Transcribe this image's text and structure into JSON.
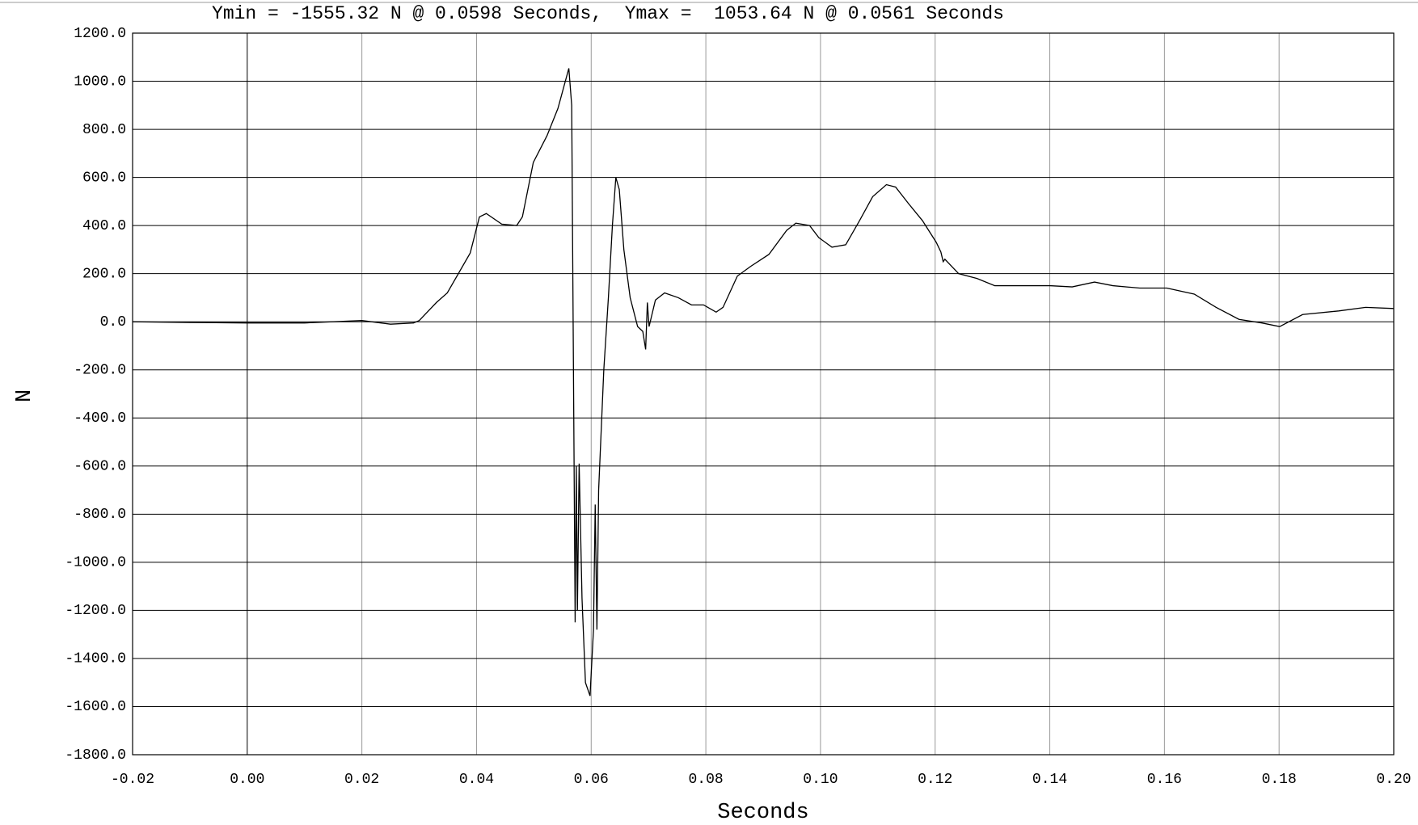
{
  "chart_data": {
    "type": "line",
    "title": "Ymin = -1555.32 N @ 0.0598 Seconds,  Ymax =  1053.64 N @ 0.0561 Seconds",
    "x_label": "Seconds",
    "y_label": "N",
    "xlim": [
      -0.02,
      0.2
    ],
    "ylim": [
      -1800,
      1200
    ],
    "xticks": [
      {
        "value": -0.02,
        "label": "-0.02"
      },
      {
        "value": 0,
        "label": "0.00"
      },
      {
        "value": 0.02,
        "label": "0.02"
      },
      {
        "value": 0.04,
        "label": "0.04"
      },
      {
        "value": 0.06,
        "label": "0.06"
      },
      {
        "value": 0.08,
        "label": "0.08"
      },
      {
        "value": 0.1,
        "label": "0.10"
      },
      {
        "value": 0.12,
        "label": "0.12"
      },
      {
        "value": 0.14,
        "label": "0.14"
      },
      {
        "value": 0.16,
        "label": "0.16"
      },
      {
        "value": 0.18,
        "label": "0.18"
      },
      {
        "value": 0.2,
        "label": "0.20"
      }
    ],
    "yticks": [
      {
        "value": 1200,
        "label": "1200.0"
      },
      {
        "value": 1000,
        "label": "1000.0"
      },
      {
        "value": 800,
        "label": "800.0"
      },
      {
        "value": 600,
        "label": "600.0"
      },
      {
        "value": 400,
        "label": "400.0"
      },
      {
        "value": 200,
        "label": "200.0"
      },
      {
        "value": 0,
        "label": "0.0"
      },
      {
        "value": -200,
        "label": "-200.0"
      },
      {
        "value": -400,
        "label": "-400.0"
      },
      {
        "value": -600,
        "label": "-600.0"
      },
      {
        "value": -800,
        "label": "-800.0"
      },
      {
        "value": -1000,
        "label": "-1000.0"
      },
      {
        "value": -1200,
        "label": "-1200.0"
      },
      {
        "value": -1400,
        "label": "-1400.0"
      },
      {
        "value": -1600,
        "label": "-1600.0"
      },
      {
        "value": -1800,
        "label": "-1800.0"
      }
    ],
    "grid": true,
    "color": "#000000",
    "series": [
      {
        "name": "N",
        "color": "#000000",
        "x": [
          -0.02,
          -0.01,
          0,
          0.01,
          0.02,
          0.025,
          0.029,
          0.03,
          0.033,
          0.0349,
          0.0389,
          0.0405,
          0.0417,
          0.0444,
          0.047,
          0.048,
          0.0499,
          0.0523,
          0.0542,
          0.0561,
          0.0566,
          0.0572,
          0.0574,
          0.0576,
          0.0579,
          0.0584,
          0.059,
          0.0598,
          0.0604,
          0.0607,
          0.061,
          0.0613,
          0.0622,
          0.063,
          0.0637,
          0.0643,
          0.0649,
          0.0657,
          0.0668,
          0.0681,
          0.069,
          0.0695,
          0.0698,
          0.0701,
          0.0712,
          0.0728,
          0.0752,
          0.0775,
          0.0796,
          0.0818,
          0.083,
          0.0855,
          0.0878,
          0.091,
          0.0941,
          0.0957,
          0.0981,
          0.0997,
          0.102,
          0.1044,
          0.1068,
          0.1091,
          0.1115,
          0.1131,
          0.1154,
          0.1178,
          0.1202,
          0.121,
          0.1214,
          0.1217,
          0.1241,
          0.1273,
          0.1304,
          0.1352,
          0.14,
          0.1439,
          0.1478,
          0.151,
          0.1557,
          0.1604,
          0.1652,
          0.169,
          0.173,
          0.177,
          0.1801,
          0.1841,
          0.1904,
          0.1951,
          0.2
        ],
        "values": [
          0,
          -3,
          -5,
          -5,
          5,
          -10,
          -5,
          5,
          80,
          120,
          286,
          436,
          450,
          406,
          400,
          436,
          662,
          774,
          887,
          1053.64,
          900,
          -1250,
          -600,
          -1200,
          -590,
          -1150,
          -1500,
          -1555.32,
          -1280,
          -760,
          -1280,
          -700,
          -200,
          100,
          400,
          600,
          550,
          300,
          100,
          -20,
          -40,
          -115,
          80,
          -20,
          90,
          120,
          100,
          70,
          70,
          40,
          60,
          190,
          230,
          280,
          380,
          410,
          400,
          350,
          310,
          320,
          420,
          520,
          570,
          560,
          490,
          420,
          330,
          290,
          250,
          260,
          200,
          180,
          150,
          150,
          150,
          145,
          165,
          150,
          140,
          140,
          115,
          60,
          10,
          -5,
          -20,
          30,
          45,
          60,
          55
        ]
      }
    ]
  }
}
